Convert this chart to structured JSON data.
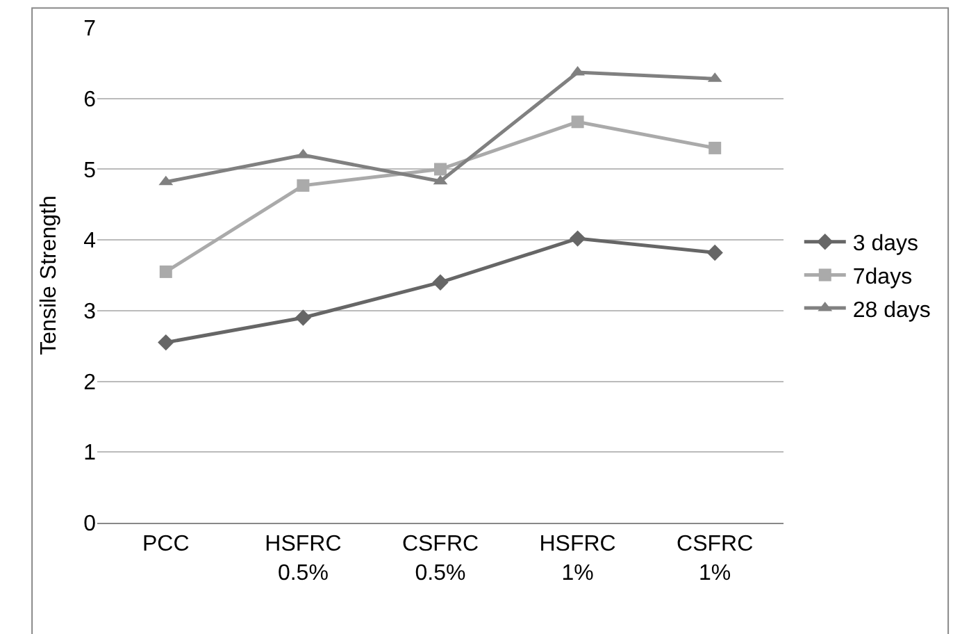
{
  "chart_data": {
    "type": "line",
    "ylabel": "Tensile Strength",
    "categories": [
      "PCC",
      "HSFRC\n0.5%",
      "CSFRC\n0.5%",
      "HSFRC\n1%",
      "CSFRC\n1%"
    ],
    "series": [
      {
        "name": "3 days",
        "color": "#666666",
        "marker": "diamond",
        "values": [
          2.55,
          2.9,
          3.4,
          4.02,
          3.82
        ]
      },
      {
        "name": "7days",
        "color": "#aaaaaa",
        "marker": "square",
        "values": [
          3.55,
          4.77,
          5.0,
          5.67,
          5.3
        ]
      },
      {
        "name": "28 days",
        "color": "#808080",
        "marker": "triangle",
        "values": [
          4.82,
          5.2,
          4.83,
          6.37,
          6.28
        ]
      }
    ],
    "ylim": [
      0,
      7
    ],
    "yticks": [
      0,
      1,
      2,
      3,
      4,
      5,
      6,
      7
    ],
    "grid": "y",
    "legend": "right",
    "line_style": "solid"
  }
}
